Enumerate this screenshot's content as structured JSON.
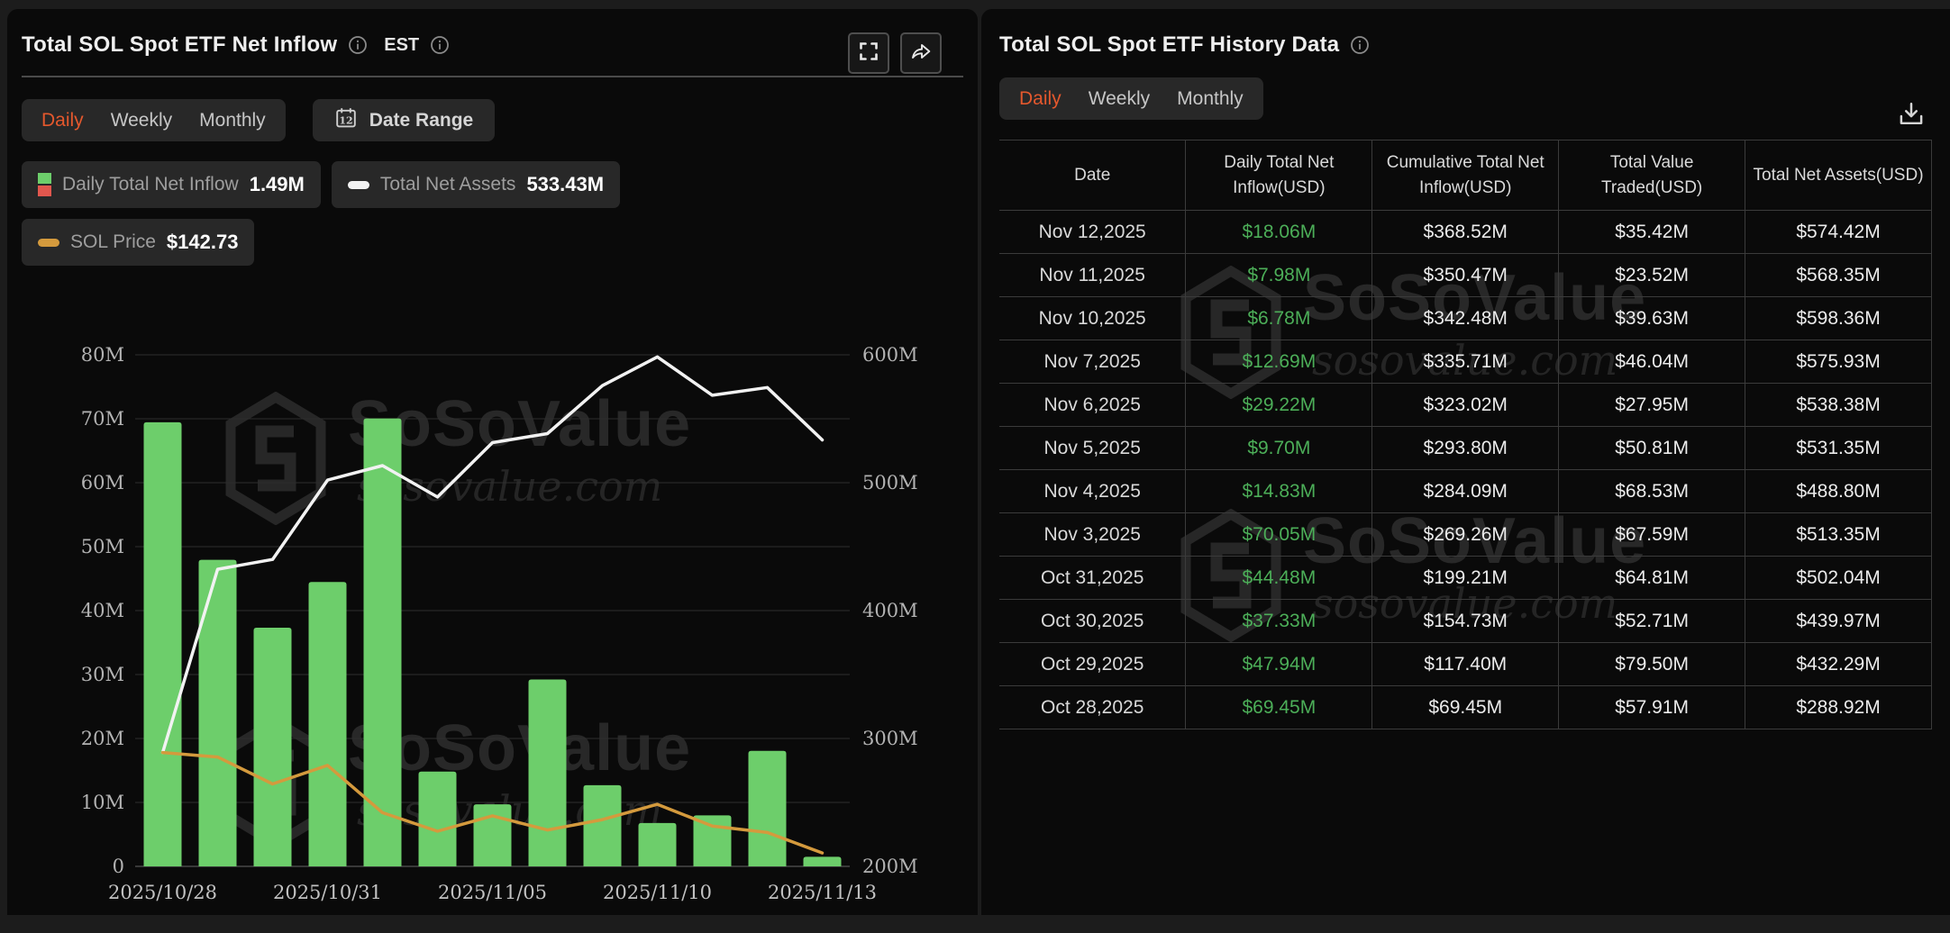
{
  "watermark": {
    "brand": "SoSoValue",
    "domain": "sosovalue.com"
  },
  "colors": {
    "accent_orange": "#E4582D",
    "bar_green": "#6DCE6B",
    "table_green": "#4CAE58",
    "negative_red": "#E2574E",
    "assets_line": "#F2F2F2",
    "price_line": "#D49A3D",
    "grid_line": "#2E2E2E",
    "axis_text": "#B2B2B2"
  },
  "left_panel": {
    "title": "Total SOL Spot ETF Net Inflow",
    "timezone_label": "EST",
    "tabs": [
      {
        "label": "Daily",
        "active": true
      },
      {
        "label": "Weekly",
        "active": false
      },
      {
        "label": "Monthly",
        "active": false
      }
    ],
    "date_range_label": "Date Range",
    "calendar_icon_day": "12",
    "actions": [
      {
        "icon": "fullscreen-icon"
      },
      {
        "icon": "share-icon"
      }
    ],
    "legend": [
      {
        "icon": "green-red-split",
        "label": "Daily Total Net Inflow",
        "value": "1.49M"
      },
      {
        "icon": "white-dash",
        "label": "Total Net Assets",
        "value": "533.43M"
      },
      {
        "icon": "orange-dash",
        "label": "SOL Price",
        "value": "$142.73"
      }
    ]
  },
  "right_panel": {
    "title": "Total SOL Spot ETF History Data",
    "tabs": [
      {
        "label": "Daily",
        "active": true
      },
      {
        "label": "Weekly",
        "active": false
      },
      {
        "label": "Monthly",
        "active": false
      }
    ],
    "download_icon": "download-icon",
    "table": {
      "columns": [
        "Date",
        "Daily Total Net Inflow(USD)",
        "Cumulative Total Net Inflow(USD)",
        "Total Value Traded(USD)",
        "Total Net Assets(USD)"
      ],
      "rows": [
        [
          "Nov 12,2025",
          "$18.06M",
          "$368.52M",
          "$35.42M",
          "$574.42M"
        ],
        [
          "Nov 11,2025",
          "$7.98M",
          "$350.47M",
          "$23.52M",
          "$568.35M"
        ],
        [
          "Nov 10,2025",
          "$6.78M",
          "$342.48M",
          "$39.63M",
          "$598.36M"
        ],
        [
          "Nov 7,2025",
          "$12.69M",
          "$335.71M",
          "$46.04M",
          "$575.93M"
        ],
        [
          "Nov 6,2025",
          "$29.22M",
          "$323.02M",
          "$27.95M",
          "$538.38M"
        ],
        [
          "Nov 5,2025",
          "$9.70M",
          "$293.80M",
          "$50.81M",
          "$531.35M"
        ],
        [
          "Nov 4,2025",
          "$14.83M",
          "$284.09M",
          "$68.53M",
          "$488.80M"
        ],
        [
          "Nov 3,2025",
          "$70.05M",
          "$269.26M",
          "$67.59M",
          "$513.35M"
        ],
        [
          "Oct 31,2025",
          "$44.48M",
          "$199.21M",
          "$64.81M",
          "$502.04M"
        ],
        [
          "Oct 30,2025",
          "$37.33M",
          "$154.73M",
          "$52.71M",
          "$439.97M"
        ],
        [
          "Oct 29,2025",
          "$47.94M",
          "$117.40M",
          "$79.50M",
          "$432.29M"
        ],
        [
          "Oct 28,2025",
          "$69.45M",
          "$69.45M",
          "$57.91M",
          "$288.92M"
        ]
      ]
    }
  },
  "chart_data": {
    "type": "bar",
    "title": "Total SOL Spot ETF Net Inflow",
    "x": [
      "2025/10/28",
      "2025/10/29",
      "2025/10/30",
      "2025/10/31",
      "2025/11/03",
      "2025/11/04",
      "2025/11/05",
      "2025/11/06",
      "2025/11/07",
      "2025/11/10",
      "2025/11/11",
      "2025/11/12",
      "2025/11/13"
    ],
    "x_ticks": {
      "indices": [
        0,
        3,
        6,
        9,
        12
      ],
      "labels": [
        "2025/10/28",
        "2025/10/31",
        "2025/11/05",
        "2025/11/10",
        "2025/11/13"
      ]
    },
    "series": [
      {
        "name": "Daily Total Net Inflow",
        "type": "bar",
        "axis": "left",
        "unit": "M USD",
        "color": "#6DCE6B",
        "values": [
          69.45,
          47.94,
          37.33,
          44.48,
          70.05,
          14.83,
          9.7,
          29.22,
          12.69,
          6.78,
          7.98,
          18.06,
          1.49
        ]
      },
      {
        "name": "Total Net Assets",
        "type": "line",
        "axis": "right",
        "unit": "M USD",
        "color": "#F2F2F2",
        "values": [
          288.92,
          432.29,
          439.97,
          502.04,
          513.35,
          488.8,
          531.35,
          538.38,
          575.93,
          598.36,
          568.35,
          574.42,
          533.43
        ]
      },
      {
        "name": "SOL Price",
        "type": "line",
        "axis": "price",
        "unit": "USD",
        "color": "#D49A3D",
        "values": [
          199.0,
          196.5,
          181.4,
          191.8,
          165.3,
          154.9,
          163.5,
          155.6,
          161.4,
          170.0,
          157.8,
          154.2,
          142.73
        ]
      }
    ],
    "left_axis": {
      "min": 0,
      "max": 80,
      "tick_step": 10,
      "labels": [
        "0",
        "10M",
        "20M",
        "30M",
        "40M",
        "50M",
        "60M",
        "70M",
        "80M"
      ]
    },
    "right_axis": {
      "min": 200,
      "max": 600,
      "tick_step": 100,
      "labels": [
        "200M",
        "300M",
        "400M",
        "500M",
        "600M"
      ]
    },
    "price_axis": {
      "min": 135.2,
      "max": 421.9,
      "visible": false
    },
    "grid": true,
    "legend_position": "top-left"
  }
}
